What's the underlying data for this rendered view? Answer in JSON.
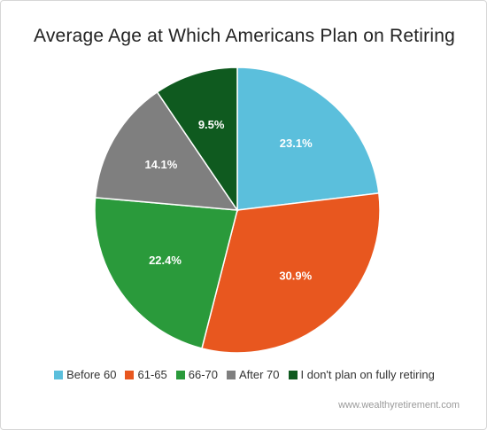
{
  "chart_data": {
    "type": "pie",
    "title": "Average Age at Which Americans Plan on Retiring",
    "slices": [
      {
        "label": "Before 60",
        "value": 23.1,
        "value_label": "23.1%",
        "color": "#5bbfdc"
      },
      {
        "label": "61-65",
        "value": 30.9,
        "value_label": "30.9%",
        "color": "#e8571f"
      },
      {
        "label": "66-70",
        "value": 22.4,
        "value_label": "22.4%",
        "color": "#2a9a3b"
      },
      {
        "label": "After 70",
        "value": 14.1,
        "value_label": "14.1%",
        "color": "#7f7f7f"
      },
      {
        "label": "I don't plan on fully retiring",
        "value": 9.5,
        "value_label": "9.5%",
        "color": "#0f5a1f"
      }
    ],
    "start_angle": "12 o'clock",
    "direction": "clockwise",
    "legend_position": "bottom"
  },
  "source_text": "www.wealthyretirement.com"
}
